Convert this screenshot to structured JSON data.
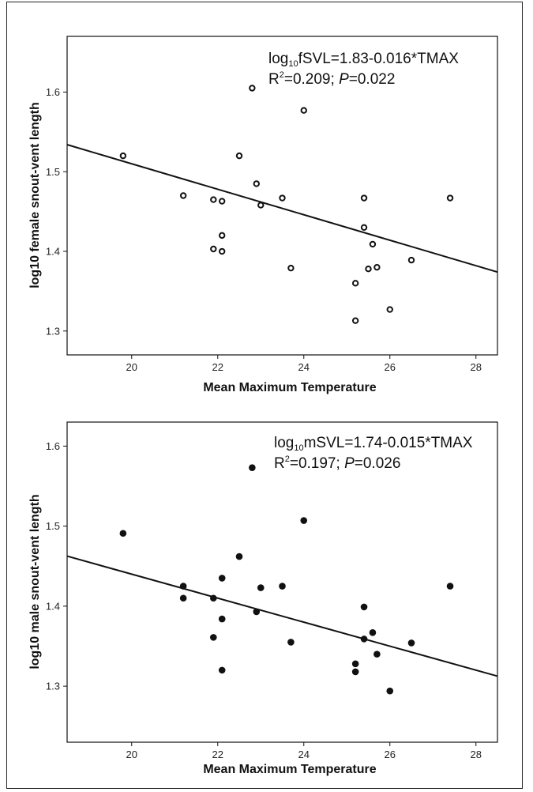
{
  "chart_data": [
    {
      "type": "scatter",
      "marker": "open-circle",
      "xlabel": "Mean Maximum Temperature",
      "ylabel": "log10 female snout-vent length",
      "xlim": [
        18.5,
        28.5
      ],
      "ylim": [
        1.27,
        1.67
      ],
      "xticks": [
        "20",
        "22",
        "24",
        "26",
        "28"
      ],
      "yticks": [
        "1.3",
        "1.4",
        "1.5",
        "1.6"
      ],
      "annotation": {
        "prefix": "log",
        "sub": "10",
        "rest": "fSVL=1.83-0.016*TMAX",
        "r2_prefix": "R",
        "r2_sup": "2",
        "r2_rest": "=0.209; ",
        "p_label": "P",
        "p_rest": "=0.022"
      },
      "fit": {
        "intercept": 1.83,
        "slope": -0.016
      },
      "x": [
        19.8,
        21.2,
        21.9,
        21.9,
        22.1,
        22.1,
        22.1,
        22.5,
        22.8,
        22.9,
        23.0,
        23.5,
        23.7,
        24.0,
        25.2,
        25.2,
        25.4,
        25.4,
        25.5,
        25.6,
        25.7,
        26.0,
        26.5,
        27.4
      ],
      "y": [
        1.52,
        1.47,
        1.465,
        1.403,
        1.463,
        1.42,
        1.4,
        1.52,
        1.605,
        1.485,
        1.458,
        1.467,
        1.379,
        1.577,
        1.36,
        1.313,
        1.467,
        1.43,
        1.378,
        1.409,
        1.38,
        1.327,
        1.389,
        1.467
      ]
    },
    {
      "type": "scatter",
      "marker": "filled-circle",
      "xlabel": "Mean Maximum Temperature",
      "ylabel": "log10 male snout-vent length",
      "xlim": [
        18.5,
        28.5
      ],
      "ylim": [
        1.23,
        1.63
      ],
      "xticks": [
        "20",
        "22",
        "24",
        "26",
        "28"
      ],
      "yticks": [
        "1.3",
        "1.4",
        "1.5",
        "1.6"
      ],
      "annotation": {
        "prefix": "log",
        "sub": "10",
        "rest": "mSVL=1.74-0.015*TMAX",
        "r2_prefix": "R",
        "r2_sup": "2",
        "r2_rest": "=0.197; ",
        "p_label": "P",
        "p_rest": "=0.026"
      },
      "fit": {
        "intercept": 1.74,
        "slope": -0.015
      },
      "x": [
        19.8,
        21.2,
        21.2,
        21.9,
        21.9,
        22.1,
        22.1,
        22.1,
        22.5,
        22.8,
        22.9,
        23.0,
        23.5,
        23.7,
        24.0,
        25.2,
        25.2,
        25.4,
        25.4,
        25.6,
        25.7,
        26.0,
        26.5,
        27.4
      ],
      "y": [
        1.491,
        1.425,
        1.41,
        1.41,
        1.361,
        1.435,
        1.384,
        1.32,
        1.462,
        1.573,
        1.393,
        1.423,
        1.425,
        1.355,
        1.507,
        1.328,
        1.318,
        1.399,
        1.359,
        1.367,
        1.34,
        1.294,
        1.354,
        1.425
      ]
    }
  ]
}
